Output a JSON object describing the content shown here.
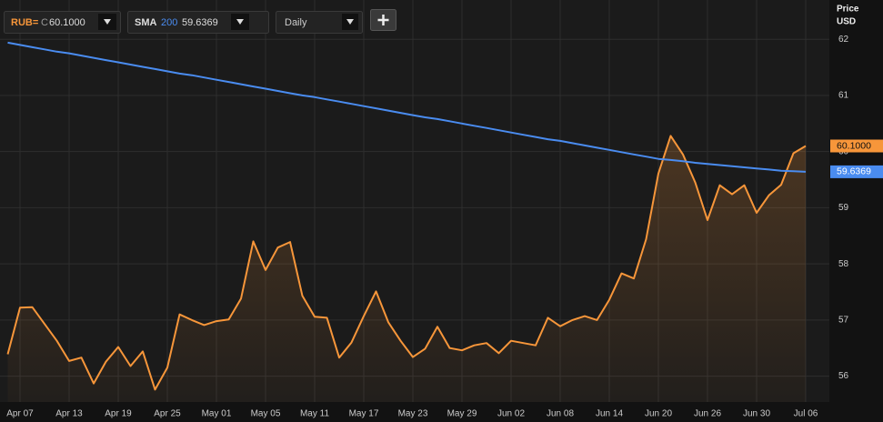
{
  "toolbar": {
    "symbol": "RUB=",
    "close_label": "C",
    "close": "60.1000",
    "indicator": "SMA",
    "period": "200",
    "indicator_value": "59.6369",
    "interval": "Daily"
  },
  "chart_data": {
    "type": "line",
    "y_axis_title": "Price",
    "y_axis_unit": "USD",
    "categories": [
      null,
      "Apr 07",
      null,
      null,
      null,
      "Apr 13",
      null,
      null,
      null,
      "Apr 19",
      null,
      null,
      null,
      "Apr 25",
      null,
      null,
      null,
      "May 01",
      null,
      null,
      null,
      "May 05",
      null,
      null,
      null,
      "May 11",
      null,
      null,
      null,
      "May 17",
      null,
      null,
      null,
      "May 23",
      null,
      null,
      null,
      "May 29",
      null,
      null,
      null,
      "Jun 02",
      null,
      null,
      null,
      "Jun 08",
      null,
      null,
      null,
      "Jun 14",
      null,
      null,
      null,
      "Jun 20",
      null,
      null,
      null,
      "Jun 26",
      null,
      null,
      null,
      "Jun 30",
      null,
      null,
      null,
      "Jul 06"
    ],
    "series": [
      {
        "name": "RUB=",
        "color": "#f7963a",
        "area": true,
        "values": [
          56.39,
          57.22,
          57.23,
          56.93,
          56.63,
          56.27,
          56.33,
          55.87,
          56.26,
          56.52,
          56.18,
          56.44,
          55.76,
          56.15,
          57.1,
          57.0,
          56.91,
          56.98,
          57.01,
          57.38,
          58.4,
          57.89,
          58.29,
          58.39,
          57.43,
          57.06,
          57.04,
          56.33,
          56.6,
          57.07,
          57.51,
          56.96,
          56.63,
          56.34,
          56.49,
          56.88,
          56.5,
          56.46,
          56.55,
          56.59,
          56.41,
          56.63,
          56.59,
          56.55,
          57.04,
          56.89,
          57.0,
          57.07,
          57.0,
          57.36,
          57.83,
          57.74,
          58.44,
          59.61,
          60.28,
          59.95,
          59.45,
          58.78,
          59.4,
          59.24,
          59.4,
          58.91,
          59.22,
          59.41,
          59.97,
          60.1
        ]
      },
      {
        "name": "SMA",
        "color": "#4a8cf0",
        "area": false,
        "values": [
          61.94,
          61.9,
          61.86,
          61.82,
          61.78,
          61.75,
          61.71,
          61.67,
          61.63,
          61.59,
          61.55,
          61.51,
          61.47,
          61.43,
          61.39,
          61.36,
          61.32,
          61.28,
          61.24,
          61.2,
          61.16,
          61.12,
          61.08,
          61.04,
          61.0,
          60.97,
          60.93,
          60.89,
          60.85,
          60.81,
          60.77,
          60.73,
          60.69,
          60.65,
          60.61,
          60.58,
          60.54,
          60.5,
          60.46,
          60.42,
          60.38,
          60.34,
          60.3,
          60.26,
          60.22,
          60.19,
          60.15,
          60.11,
          60.07,
          60.03,
          59.99,
          59.95,
          59.91,
          59.87,
          59.85,
          59.83,
          59.8,
          59.78,
          59.76,
          59.74,
          59.72,
          59.7,
          59.68,
          59.66,
          59.65,
          59.64
        ]
      }
    ],
    "ylim": [
      55.54,
      62.7
    ],
    "yticks": [
      56,
      57,
      58,
      59,
      60,
      61,
      62
    ],
    "grid": true
  }
}
